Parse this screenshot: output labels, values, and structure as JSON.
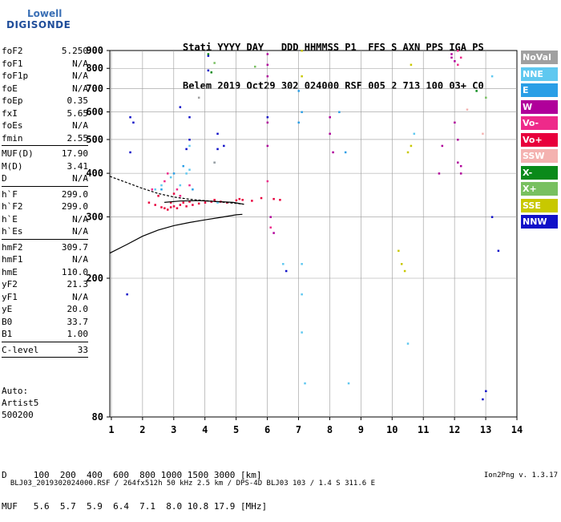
{
  "logo": {
    "line1": "Lowell",
    "line2": "DIGISONDE"
  },
  "header": {
    "line1": "Stati YYYY DAY   DDD HHMMSS P1  FFS S AXN PPS IGA PS",
    "line2": "Belem 2019 Oct29 302 024000 RSF 005 2 713 100 03+ C0"
  },
  "params": [
    {
      "name": "foF2",
      "value": "5.250"
    },
    {
      "name": "foF1",
      "value": "N/A"
    },
    {
      "name": "foF1p",
      "value": "N/A"
    },
    {
      "name": "foE",
      "value": "N/A"
    },
    {
      "name": "foEp",
      "value": "0.35"
    },
    {
      "name": "fxI",
      "value": "5.65"
    },
    {
      "name": "foEs",
      "value": "N/A"
    },
    {
      "name": "fmin",
      "value": "2.55"
    },
    {
      "sep": true
    },
    {
      "name": "MUF(D)",
      "value": "17.90"
    },
    {
      "name": "M(D)",
      "value": "3.41"
    },
    {
      "name": "D",
      "value": "N/A"
    },
    {
      "sep": true
    },
    {
      "name": "h`F",
      "value": "299.0"
    },
    {
      "name": "h`F2",
      "value": "299.0"
    },
    {
      "name": "h`E",
      "value": "N/A"
    },
    {
      "name": "h`Es",
      "value": "N/A"
    },
    {
      "sep": true
    },
    {
      "name": "hmF2",
      "value": "309.7"
    },
    {
      "name": "hmF1",
      "value": "N/A"
    },
    {
      "name": "hmE",
      "value": "110.0"
    },
    {
      "name": "yF2",
      "value": "21.3"
    },
    {
      "name": "yF1",
      "value": "N/A"
    },
    {
      "name": "yE",
      "value": "20.0"
    },
    {
      "name": "B0",
      "value": "33.7"
    },
    {
      "name": "B1",
      "value": "1.00"
    },
    {
      "sep": true
    },
    {
      "name": "C-level",
      "value": "33"
    },
    {
      "sep": true
    }
  ],
  "artist": {
    "line1": "Auto:",
    "line2": "Artist5",
    "line3": "500200"
  },
  "dmuf": {
    "d_line": "D     100  200  400  600  800 1000 1500 3000 [km]",
    "muf_line": "MUF   5.6  5.7  5.9  6.4  7.1  8.0 10.8 17.9 [MHz]"
  },
  "footer": {
    "left": "BLJ03_2019302024000.RSF / 264fx512h 50 kHz 2.5 km / DPS-4D BLJ03 103 / 1.4 S 311.6 E",
    "right": "Ion2Png v. 1.3.17"
  },
  "legend": [
    {
      "label": "NoVal",
      "color": "#a0a0a0"
    },
    {
      "label": "NNE",
      "color": "#5fc8f0"
    },
    {
      "label": "E",
      "color": "#2a9ee6"
    },
    {
      "label": "W",
      "color": "#b0009a"
    },
    {
      "label": "Vo-",
      "color": "#ee2a8a"
    },
    {
      "label": "Vo+",
      "color": "#e8003c"
    },
    {
      "label": "SSW",
      "color": "#f4b2b0"
    },
    {
      "label": "X-",
      "color": "#0a8a1a"
    },
    {
      "label": "X+",
      "color": "#78c060"
    },
    {
      "label": "SSE",
      "color": "#c8c800"
    },
    {
      "label": "NNW",
      "color": "#1010c8"
    }
  ],
  "chart_data": {
    "type": "scatter",
    "title": "",
    "xlabel": "",
    "ylabel": "",
    "xlim": [
      0.95,
      14
    ],
    "ylim": [
      80,
      900
    ],
    "xticks": [
      1,
      2,
      3,
      4,
      5,
      6,
      7,
      8,
      9,
      10,
      11,
      12,
      13,
      14
    ],
    "yticks": [
      80,
      200,
      300,
      400,
      500,
      600,
      700,
      800,
      900
    ],
    "grid": true,
    "y_scale": "log",
    "series": [
      {
        "name": "Vo+",
        "color": "#e8003c",
        "x": [
          2.2,
          2.4,
          2.6,
          2.7,
          2.8,
          2.9,
          3.0,
          3.1,
          3.2,
          3.3,
          3.4,
          3.6,
          3.8,
          4.0,
          4.2,
          4.5,
          4.7,
          5.0,
          5.1,
          5.2,
          5.5,
          5.8,
          6.2,
          6.4,
          2.5,
          2.9,
          3.0,
          3.2,
          3.5,
          4.3
        ],
        "y": [
          330,
          325,
          320,
          318,
          315,
          320,
          322,
          318,
          325,
          330,
          322,
          325,
          328,
          330,
          332,
          332,
          330,
          335,
          338,
          336,
          334,
          340,
          338,
          336,
          345,
          330,
          350,
          345,
          332,
          336
        ]
      },
      {
        "name": "Vo-",
        "color": "#ee2a8a",
        "x": [
          2.3,
          2.7,
          3.1,
          3.5,
          2.8,
          3.2,
          12.1,
          12.2,
          12.1,
          6.0,
          6.1
        ],
        "y": [
          360,
          380,
          360,
          370,
          400,
          345,
          900,
          860,
          820,
          380,
          280
        ]
      },
      {
        "name": "W",
        "color": "#b0009a",
        "x": [
          6.0,
          6.0,
          6.0,
          6.0,
          6.0,
          8.0,
          8.0,
          8.1,
          11.9,
          11.9,
          12.0,
          12.0,
          12.1,
          12.1,
          12.2,
          12.2,
          11.6,
          11.5,
          6.1,
          6.2
        ],
        "y": [
          880,
          820,
          760,
          560,
          480,
          580,
          520,
          460,
          880,
          860,
          840,
          560,
          500,
          430,
          420,
          400,
          480,
          400,
          300,
          270
        ]
      },
      {
        "name": "NNE",
        "color": "#5fc8f0",
        "x": [
          2.4,
          2.6,
          2.9,
          3.2,
          3.4,
          3.5,
          3.5,
          4.4,
          6.5,
          7.1,
          7.1,
          7.1,
          7.2,
          8.6,
          10.5,
          10.7,
          13.2
        ],
        "y": [
          360,
          370,
          390,
          370,
          400,
          410,
          480,
          330,
          220,
          220,
          180,
          140,
          100,
          100,
          130,
          520,
          760
        ]
      },
      {
        "name": "E",
        "color": "#2a9ee6",
        "x": [
          2.6,
          3.0,
          3.3,
          3.6,
          4.3,
          7.0,
          7.0,
          7.1,
          8.3,
          8.5
        ],
        "y": [
          360,
          400,
          420,
          360,
          430,
          690,
          560,
          600,
          600,
          460
        ]
      },
      {
        "name": "NNW",
        "color": "#1010c8",
        "x": [
          1.6,
          1.7,
          1.6,
          3.2,
          3.5,
          3.5,
          3.4,
          4.1,
          4.1,
          4.4,
          4.4,
          4.6,
          6.0,
          6.6,
          13.4,
          13.2,
          12.9,
          13.0,
          1.5
        ],
        "y": [
          580,
          560,
          460,
          620,
          580,
          500,
          470,
          870,
          790,
          520,
          470,
          480,
          580,
          210,
          240,
          300,
          90,
          95,
          180
        ]
      },
      {
        "name": "X-",
        "color": "#0a8a1a",
        "x": [
          4.1,
          4.2,
          12.7
        ],
        "y": [
          880,
          780,
          690
        ]
      },
      {
        "name": "X+",
        "color": "#78c060",
        "x": [
          4.3,
          5.6,
          13.0
        ],
        "y": [
          830,
          810,
          660
        ]
      },
      {
        "name": "SSE",
        "color": "#c8c800",
        "x": [
          7.1,
          7.1,
          10.2,
          10.3,
          10.4,
          10.5,
          10.6,
          10.6
        ],
        "y": [
          900,
          760,
          240,
          220,
          210,
          460,
          480,
          820
        ]
      },
      {
        "name": "SSW",
        "color": "#f4b2b0",
        "x": [
          12.4,
          12.9
        ],
        "y": [
          610,
          520
        ]
      },
      {
        "name": "NoVal",
        "color": "#a0a0a0",
        "x": [
          3.8,
          4.3
        ],
        "y": [
          660,
          430
        ]
      }
    ],
    "curves": [
      {
        "name": "",
        "color": "#000",
        "style": "solid",
        "x": [
          0.95,
          1.5,
          2.0,
          2.5,
          3.0,
          3.5,
          4.0,
          4.5,
          5.0,
          5.2
        ],
        "y": [
          236,
          250,
          264,
          275,
          283,
          289,
          294,
          299,
          304,
          305
        ]
      },
      {
        "name": "",
        "color": "#000",
        "style": "dashed",
        "x": [
          0.95,
          1.5,
          2.0,
          2.5,
          3.0,
          3.5,
          4.0,
          4.5,
          5.0,
          5.25
        ],
        "y": [
          392,
          376,
          362,
          350,
          342,
          337,
          334,
          331,
          328,
          326
        ]
      },
      {
        "name": "",
        "color": "#000",
        "style": "solid",
        "x": [
          2.7,
          3.2,
          3.8,
          4.4,
          4.9,
          5.25
        ],
        "y": [
          330,
          333,
          334,
          332,
          330,
          326
        ]
      }
    ]
  }
}
